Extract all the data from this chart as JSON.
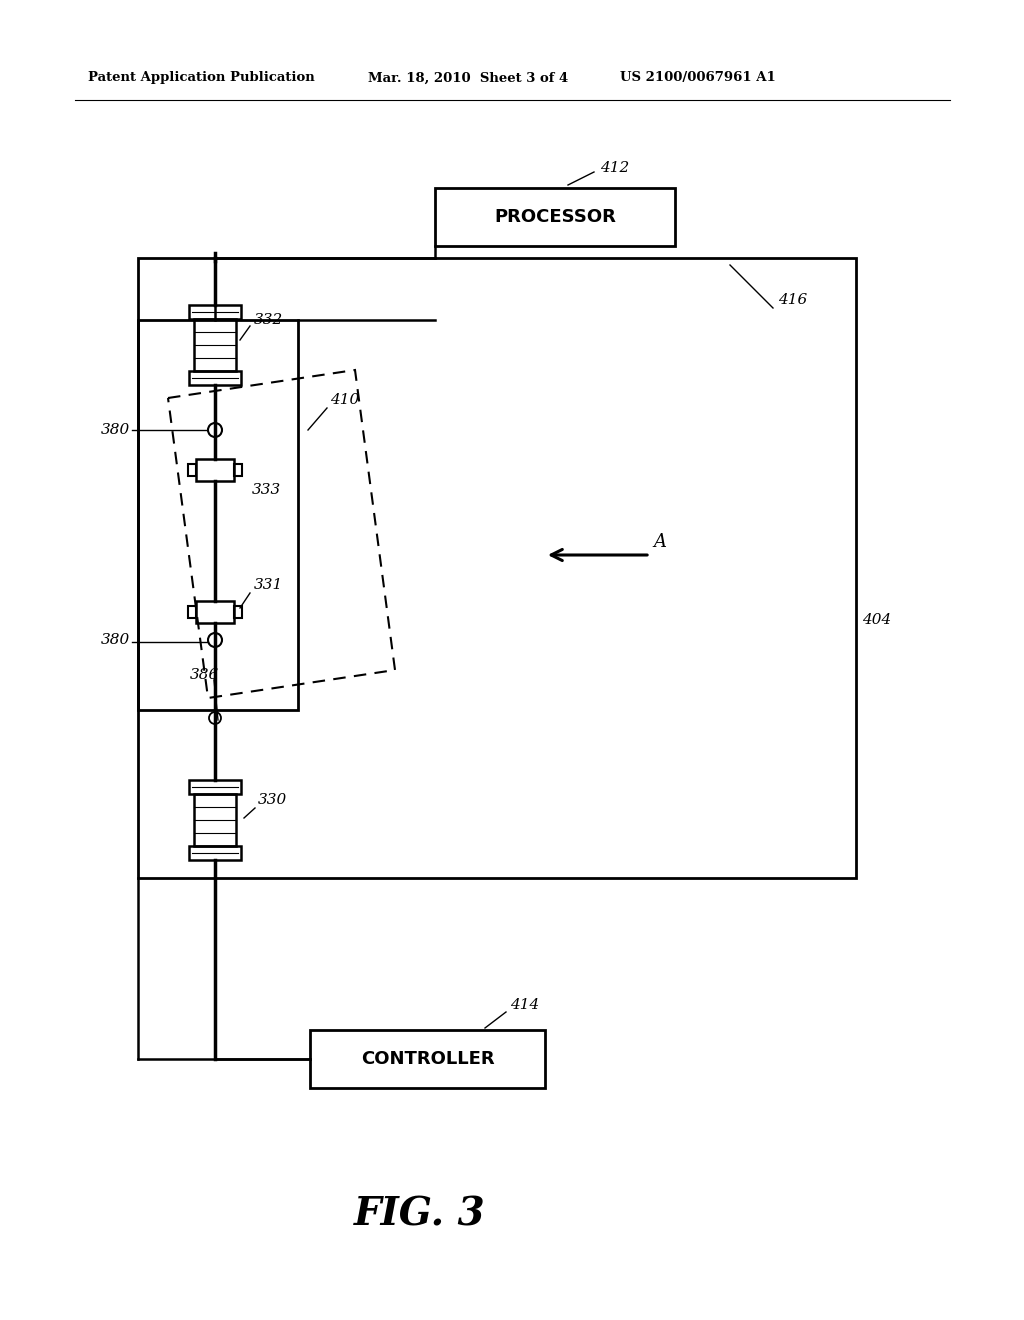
{
  "bg_color": "#ffffff",
  "header_left": "Patent Application Publication",
  "header_mid": "Mar. 18, 2010  Sheet 3 of 4",
  "header_right": "US 2100/0067961 A1",
  "fig_label": "FIG. 3",
  "patent_number_correct": "US 2100/0067961 A1"
}
